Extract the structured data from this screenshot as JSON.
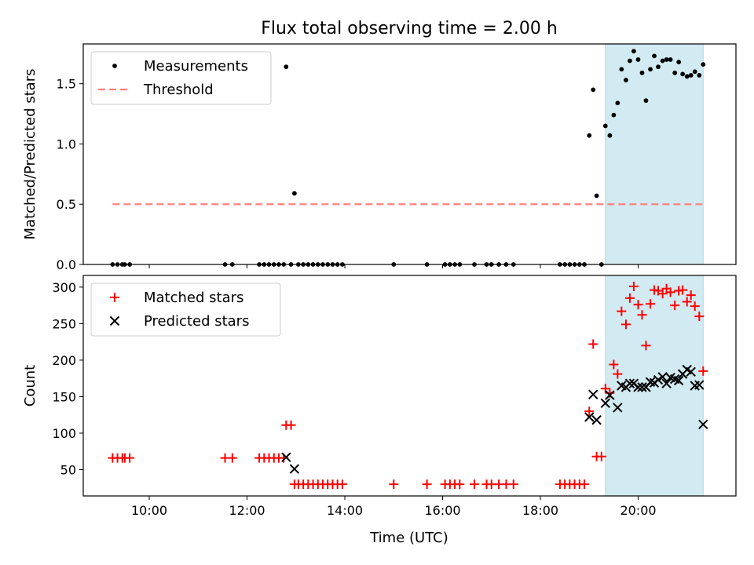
{
  "chart_data": {
    "title": "Flux total observing time = 2.00 h",
    "xlabel": "Time (UTC)",
    "x_unit": "decimal hours UTC",
    "xlim": [
      8.65,
      22.0
    ],
    "x_ticks": [
      10,
      12,
      14,
      16,
      18,
      20
    ],
    "x_tick_labels": [
      "10:00",
      "12:00",
      "14:00",
      "16:00",
      "18:00",
      "20:00"
    ],
    "highlight": {
      "x_start": 19.33,
      "x_end": 21.33,
      "color": "#add8e6"
    },
    "panels": [
      {
        "type": "scatter",
        "ylabel": "Matched/Predicted stars",
        "ylim": [
          0,
          1.83
        ],
        "y_ticks": [
          0.0,
          0.5,
          1.0,
          1.5
        ],
        "y_tick_labels": [
          "0.0",
          "0.5",
          "1.0",
          "1.5"
        ],
        "legend_position": "top-left",
        "series": [
          {
            "name": "Measurements",
            "marker": "dot",
            "color": "#000000",
            "points": [
              [
                9.25,
                0
              ],
              [
                9.35,
                0
              ],
              [
                9.45,
                0
              ],
              [
                9.5,
                0
              ],
              [
                9.6,
                0
              ],
              [
                11.55,
                0
              ],
              [
                11.7,
                0
              ],
              [
                12.25,
                0
              ],
              [
                12.35,
                0
              ],
              [
                12.45,
                0
              ],
              [
                12.55,
                0
              ],
              [
                12.65,
                0
              ],
              [
                12.75,
                0
              ],
              [
                12.8,
                1.64
              ],
              [
                12.9,
                0
              ],
              [
                12.97,
                0.59
              ],
              [
                13.05,
                0
              ],
              [
                13.15,
                0
              ],
              [
                13.25,
                0
              ],
              [
                13.35,
                0
              ],
              [
                13.45,
                0
              ],
              [
                13.55,
                0
              ],
              [
                13.65,
                0
              ],
              [
                13.75,
                0
              ],
              [
                13.85,
                0
              ],
              [
                13.95,
                0
              ],
              [
                15.0,
                0
              ],
              [
                15.68,
                0
              ],
              [
                16.05,
                0
              ],
              [
                16.15,
                0
              ],
              [
                16.25,
                0
              ],
              [
                16.35,
                0
              ],
              [
                16.65,
                0
              ],
              [
                16.9,
                0
              ],
              [
                17.0,
                0
              ],
              [
                17.15,
                0
              ],
              [
                17.3,
                0
              ],
              [
                17.45,
                0
              ],
              [
                18.4,
                0
              ],
              [
                18.5,
                0
              ],
              [
                18.6,
                0
              ],
              [
                18.7,
                0
              ],
              [
                18.8,
                0
              ],
              [
                18.9,
                0
              ],
              [
                19.0,
                1.07
              ],
              [
                19.08,
                1.45
              ],
              [
                19.15,
                0.57
              ],
              [
                19.25,
                0
              ],
              [
                19.33,
                1.15
              ],
              [
                19.42,
                1.07
              ],
              [
                19.5,
                1.24
              ],
              [
                19.58,
                1.34
              ],
              [
                19.66,
                1.62
              ],
              [
                19.75,
                1.53
              ],
              [
                19.83,
                1.69
              ],
              [
                19.91,
                1.77
              ],
              [
                20.0,
                1.7
              ],
              [
                20.08,
                1.59
              ],
              [
                20.16,
                1.36
              ],
              [
                20.25,
                1.62
              ],
              [
                20.33,
                1.73
              ],
              [
                20.41,
                1.64
              ],
              [
                20.5,
                1.69
              ],
              [
                20.58,
                1.7
              ],
              [
                20.66,
                1.7
              ],
              [
                20.75,
                1.59
              ],
              [
                20.83,
                1.68
              ],
              [
                20.91,
                1.58
              ],
              [
                21.0,
                1.56
              ],
              [
                21.08,
                1.57
              ],
              [
                21.16,
                1.6
              ],
              [
                21.25,
                1.57
              ],
              [
                21.33,
                1.66
              ]
            ]
          },
          {
            "name": "Threshold",
            "marker": "dashed-line",
            "color": "#ff8080",
            "points": [
              [
                9.25,
                0.5
              ],
              [
                21.33,
                0.5
              ]
            ]
          }
        ]
      },
      {
        "type": "scatter",
        "ylabel": "Count",
        "ylim": [
          14,
          316
        ],
        "y_ticks": [
          50,
          100,
          150,
          200,
          250,
          300
        ],
        "y_tick_labels": [
          "50",
          "100",
          "150",
          "200",
          "250",
          "300"
        ],
        "legend_position": "top-left",
        "series": [
          {
            "name": "Matched stars",
            "marker": "plus",
            "color": "#ff0000",
            "points": [
              [
                9.25,
                66
              ],
              [
                9.35,
                66
              ],
              [
                9.45,
                66
              ],
              [
                9.5,
                66
              ],
              [
                9.6,
                66
              ],
              [
                11.55,
                66
              ],
              [
                11.7,
                66
              ],
              [
                12.25,
                66
              ],
              [
                12.35,
                66
              ],
              [
                12.45,
                66
              ],
              [
                12.55,
                66
              ],
              [
                12.65,
                66
              ],
              [
                12.75,
                66
              ],
              [
                12.8,
                111
              ],
              [
                12.9,
                111
              ],
              [
                12.97,
                30
              ],
              [
                13.05,
                30
              ],
              [
                13.15,
                30
              ],
              [
                13.25,
                30
              ],
              [
                13.35,
                30
              ],
              [
                13.45,
                30
              ],
              [
                13.55,
                30
              ],
              [
                13.65,
                30
              ],
              [
                13.75,
                30
              ],
              [
                13.85,
                30
              ],
              [
                13.95,
                30
              ],
              [
                15.0,
                30
              ],
              [
                15.68,
                30
              ],
              [
                16.05,
                30
              ],
              [
                16.15,
                30
              ],
              [
                16.25,
                30
              ],
              [
                16.35,
                30
              ],
              [
                16.65,
                30
              ],
              [
                16.9,
                30
              ],
              [
                17.0,
                30
              ],
              [
                17.15,
                30
              ],
              [
                17.3,
                30
              ],
              [
                17.45,
                30
              ],
              [
                18.4,
                30
              ],
              [
                18.5,
                30
              ],
              [
                18.6,
                30
              ],
              [
                18.7,
                30
              ],
              [
                18.8,
                30
              ],
              [
                18.9,
                30
              ],
              [
                19.0,
                130
              ],
              [
                19.08,
                222
              ],
              [
                19.15,
                68
              ],
              [
                19.25,
                68
              ],
              [
                19.33,
                161
              ],
              [
                19.42,
                155
              ],
              [
                19.5,
                194
              ],
              [
                19.58,
                181
              ],
              [
                19.66,
                267
              ],
              [
                19.75,
                249
              ],
              [
                19.83,
                285
              ],
              [
                19.91,
                301
              ],
              [
                20.0,
                276
              ],
              [
                20.08,
                262
              ],
              [
                20.16,
                220
              ],
              [
                20.25,
                277
              ],
              [
                20.33,
                296
              ],
              [
                20.41,
                295
              ],
              [
                20.5,
                291
              ],
              [
                20.58,
                298
              ],
              [
                20.66,
                293
              ],
              [
                20.75,
                275
              ],
              [
                20.83,
                295
              ],
              [
                20.91,
                296
              ],
              [
                21.0,
                280
              ],
              [
                21.08,
                289
              ],
              [
                21.16,
                274
              ],
              [
                21.25,
                260
              ],
              [
                21.33,
                185
              ]
            ]
          },
          {
            "name": "Predicted stars",
            "marker": "x",
            "color": "#000000",
            "points": [
              [
                12.8,
                67
              ],
              [
                12.97,
                51
              ],
              [
                19.0,
                122
              ],
              [
                19.08,
                153
              ],
              [
                19.15,
                118
              ],
              [
                19.33,
                141
              ],
              [
                19.42,
                152
              ],
              [
                19.58,
                135
              ],
              [
                19.66,
                165
              ],
              [
                19.75,
                163
              ],
              [
                19.83,
                168
              ],
              [
                19.91,
                168
              ],
              [
                20.0,
                163
              ],
              [
                20.08,
                163
              ],
              [
                20.16,
                163
              ],
              [
                20.25,
                170
              ],
              [
                20.33,
                169
              ],
              [
                20.41,
                173
              ],
              [
                20.5,
                177
              ],
              [
                20.58,
                168
              ],
              [
                20.66,
                176
              ],
              [
                20.75,
                174
              ],
              [
                20.83,
                172
              ],
              [
                20.91,
                181
              ],
              [
                21.0,
                187
              ],
              [
                21.08,
                184
              ],
              [
                21.16,
                165
              ],
              [
                21.25,
                166
              ],
              [
                21.33,
                112
              ]
            ]
          }
        ]
      }
    ]
  }
}
